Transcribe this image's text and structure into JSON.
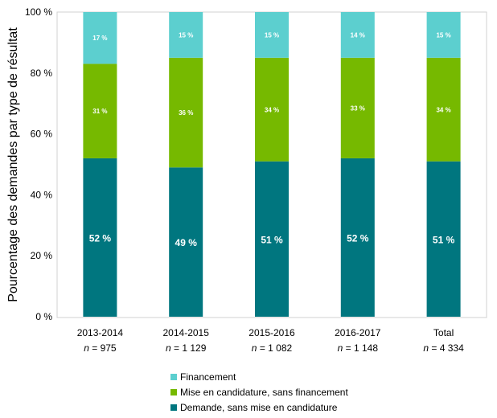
{
  "chart_data": {
    "type": "bar",
    "stacked": true,
    "ylabel": "Pourcentage des demandes par type de résultat",
    "ylim": [
      0,
      100
    ],
    "y_ticks": [
      "0 %",
      "20 %",
      "40 %",
      "60 %",
      "80 %",
      "100 %"
    ],
    "y_tick_values": [
      0,
      20,
      40,
      60,
      80,
      100
    ],
    "categories": [
      "2013-2014",
      "2014-2015",
      "2015-2016",
      "2016-2017",
      "Total"
    ],
    "n_values": [
      "975",
      "1 129",
      "1 082",
      "1 148",
      "4 334"
    ],
    "n_prefix": "n",
    "series": [
      {
        "name": "Demande, sans mise en candidature",
        "color": "#00767f",
        "values": [
          52,
          49,
          51,
          52,
          51
        ],
        "labels": [
          "52 %",
          "49 %",
          "51 %",
          "52 %",
          "51 %"
        ]
      },
      {
        "name": "Mise en candidature, sans financement",
        "color": "#76b900",
        "values": [
          31,
          36,
          34,
          33,
          34
        ],
        "labels": [
          "31 %",
          "36 %",
          "34 %",
          "33 %",
          "34 %"
        ]
      },
      {
        "name": "Financement",
        "color": "#5ccfcf",
        "values": [
          17,
          15,
          15,
          14,
          15
        ],
        "labels": [
          "17 %",
          "15 %",
          "15 %",
          "14 %",
          "15 %"
        ]
      }
    ],
    "legend": {
      "position": "bottom-center",
      "order": [
        "Financement",
        "Mise en candidature, sans financement",
        "Demande, sans mise en candidature"
      ]
    },
    "grid": false
  }
}
